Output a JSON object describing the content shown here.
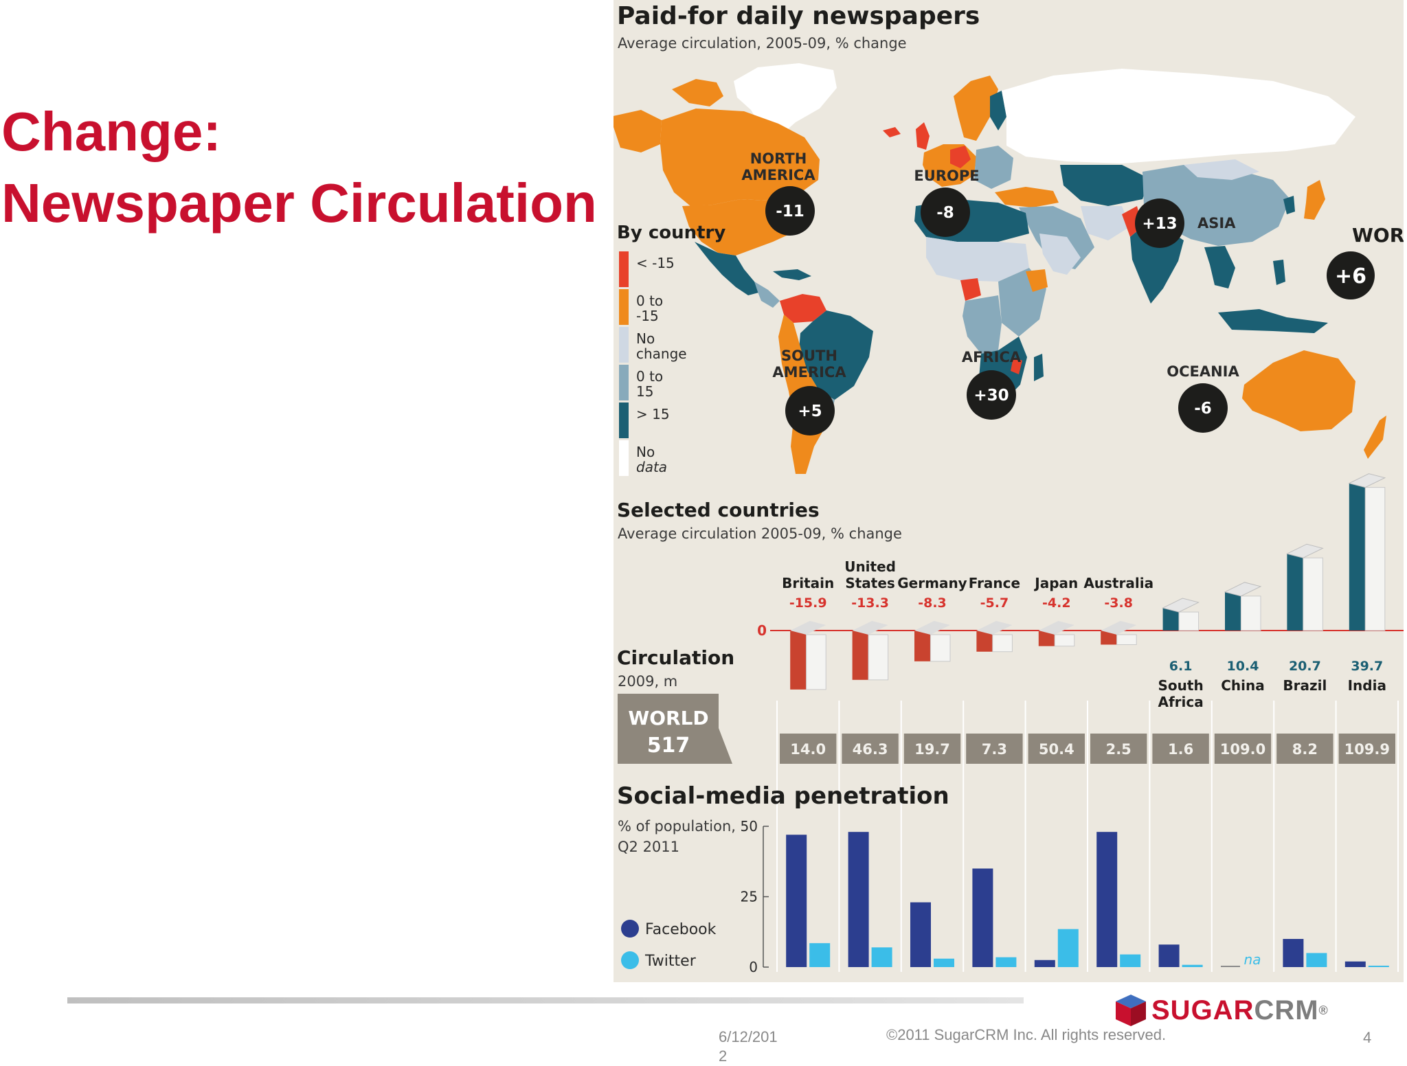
{
  "slide": {
    "title_line1": "Change:",
    "title_line2": "Newspaper Circulation",
    "footer": {
      "date": "6/12/2012",
      "copyright": "©2011 SugarCRM Inc. All rights reserved.",
      "page": "4"
    },
    "logo": {
      "text_red": "SUGAR",
      "text_gray": "CRM",
      "mark": "®"
    }
  },
  "colors": {
    "title_red": "#c8102e",
    "lt_neg15": "#e8412a",
    "neg0to15": "#ef8a1c",
    "no_change": "#cfd8e3",
    "pos0to15": "#88aabb",
    "gt15": "#1b5f73",
    "no_data": "#ffffff",
    "facebook": "#2c3e8f",
    "twitter": "#3bbde8",
    "neg_label": "#d7332d",
    "pos_label": "#1b5f73",
    "world_box": "#8e877c"
  },
  "chart_data": [
    {
      "type": "map",
      "title": "Paid-for daily newspapers",
      "subtitle": "Average circulation, 2005-09, % change",
      "legend_title": "By country",
      "legend": [
        {
          "label_1": "< -15",
          "label_2": "",
          "color": "#e8412a"
        },
        {
          "label_1": "0 to",
          "label_2": "-15",
          "color": "#ef8a1c"
        },
        {
          "label_1": "No",
          "label_2": "change",
          "color": "#cfd8e3"
        },
        {
          "label_1": "0 to",
          "label_2": "15",
          "color": "#88aabb"
        },
        {
          "label_1": "> 15",
          "label_2": "",
          "color": "#1b5f73"
        },
        {
          "label_1": "No",
          "label_2": "data",
          "color": "#ffffff"
        }
      ],
      "regions": [
        {
          "name_1": "NORTH",
          "name_2": "AMERICA",
          "value": "-11"
        },
        {
          "name_1": "EUROPE",
          "name_2": "",
          "value": "-8"
        },
        {
          "name_1": "ASIA",
          "name_2": "",
          "value": "+13"
        },
        {
          "name_1": "SOUTH",
          "name_2": "AMERICA",
          "value": "+5"
        },
        {
          "name_1": "AFRICA",
          "name_2": "",
          "value": "+30"
        },
        {
          "name_1": "OCEANIA",
          "name_2": "",
          "value": "-6"
        }
      ],
      "world": {
        "label": "WORLD",
        "value": "+6"
      }
    },
    {
      "type": "bar",
      "title": "Selected countries",
      "subtitle": "Average circulation 2005-09, % change",
      "zero_label": "0",
      "categories": [
        "Britain",
        "United States",
        "Germany",
        "France",
        "Japan",
        "Australia",
        "South Africa",
        "China",
        "Brazil",
        "India"
      ],
      "values": [
        -15.9,
        -13.3,
        -8.3,
        -5.7,
        -4.2,
        -3.8,
        6.1,
        10.4,
        20.7,
        39.7
      ],
      "value_labels": [
        "-15.9",
        "-13.3",
        "-8.3",
        "-5.7",
        "-4.2",
        "-3.8",
        "6.1",
        "10.4",
        "20.7",
        "39.7"
      ]
    },
    {
      "type": "table",
      "title": "Circulation",
      "subtitle": "2009, m",
      "world_label": "WORLD",
      "world_value": "517",
      "categories": [
        "Britain",
        "United States",
        "Germany",
        "France",
        "Japan",
        "Australia",
        "South Africa",
        "China",
        "Brazil",
        "India"
      ],
      "values": [
        "14.0",
        "46.3",
        "19.7",
        "7.3",
        "50.4",
        "2.5",
        "1.6",
        "109.0",
        "8.2",
        "109.9"
      ]
    },
    {
      "type": "bar",
      "title": "Social-media penetration",
      "subtitle_1": "% of population,",
      "subtitle_2": "Q2 2011",
      "ylim": [
        0,
        50
      ],
      "yticks": [
        "50",
        "25",
        "0"
      ],
      "categories": [
        "Britain",
        "United States",
        "Germany",
        "France",
        "Japan",
        "Australia",
        "South Africa",
        "China",
        "Brazil",
        "India"
      ],
      "series": [
        {
          "name": "Facebook",
          "values": [
            47,
            48,
            23,
            35,
            2.5,
            48,
            8,
            null,
            10,
            2
          ]
        },
        {
          "name": "Twitter",
          "values": [
            8.5,
            7,
            3,
            3.5,
            13.5,
            4.5,
            0.8,
            null,
            5,
            0.5
          ]
        }
      ],
      "annotations": [
        {
          "category": "China",
          "text": "na"
        }
      ]
    }
  ]
}
